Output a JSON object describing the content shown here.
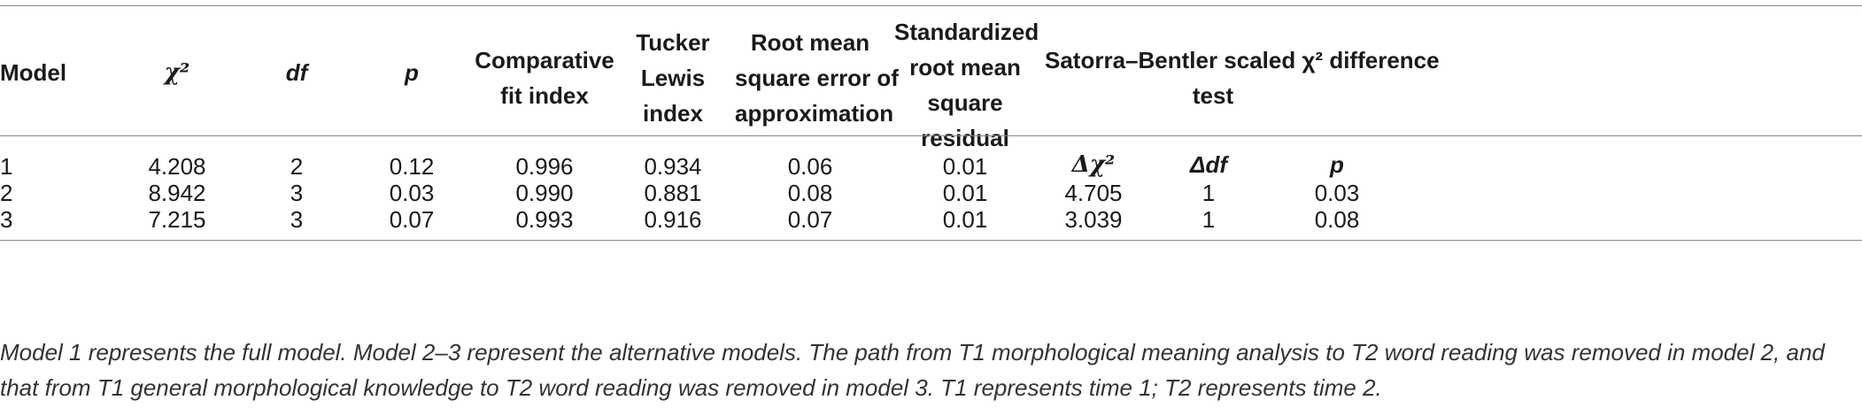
{
  "table": {
    "headers": {
      "model": "Model",
      "chi2": "χ²",
      "df": "df",
      "p": "p",
      "cfi": [
        "Comparative",
        "fit index"
      ],
      "tli": [
        "Tucker",
        "Lewis",
        "index"
      ],
      "rmsea": [
        "Root mean",
        "square error of",
        "approximation"
      ],
      "srmr": [
        "Standardized",
        "root mean",
        "square",
        "residual"
      ],
      "sb_group": [
        "Satorra–Bentler scaled χ² difference",
        "test"
      ]
    },
    "sb_subheaders": {
      "delta_chi2": "Δχ²",
      "delta_df": "Δdf",
      "p": "p"
    },
    "rows": [
      {
        "model": "1",
        "chi2": "4.208",
        "df": "2",
        "p": "0.12",
        "cfi": "0.996",
        "tli": "0.934",
        "rmsea": "0.06",
        "srmr": "0.01",
        "delta_chi2": "",
        "delta_df": "",
        "delta_p": ""
      },
      {
        "model": "2",
        "chi2": "8.942",
        "df": "3",
        "p": "0.03",
        "cfi": "0.990",
        "tli": "0.881",
        "rmsea": "0.08",
        "srmr": "0.01",
        "delta_chi2": "4.705",
        "delta_df": "1",
        "delta_p": "0.03"
      },
      {
        "model": "3",
        "chi2": "7.215",
        "df": "3",
        "p": "0.07",
        "cfi": "0.993",
        "tli": "0.916",
        "rmsea": "0.07",
        "srmr": "0.01",
        "delta_chi2": "3.039",
        "delta_df": "1",
        "delta_p": "0.08"
      }
    ]
  },
  "note": "Model 1 represents the full model. Model 2–3 represent the alternative models. The path from T1 morphological meaning analysis to T2 word reading was removed in model 2, and that from T1 general morphological knowledge to T2 word reading was removed in model 3. T1 represents time 1; T2 represents time 2."
}
